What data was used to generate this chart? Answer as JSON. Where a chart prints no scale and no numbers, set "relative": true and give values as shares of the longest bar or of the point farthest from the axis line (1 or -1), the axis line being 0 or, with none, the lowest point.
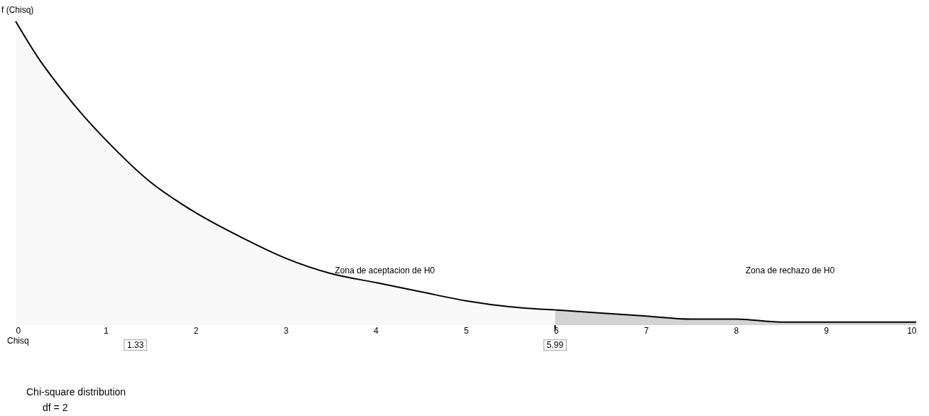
{
  "chart_data": {
    "type": "area",
    "title": "Chi-square distribution",
    "subtitle": "df =  2",
    "xlabel": "Chisq",
    "ylabel": "f (Chisq)",
    "relative": true,
    "xlim": [
      0,
      10
    ],
    "xticks": [
      0,
      1,
      2,
      3,
      4,
      5,
      6,
      7,
      8,
      9,
      10
    ],
    "tick_labels": "x",
    "grid": false,
    "series": [
      {
        "color": "#f7f7f7",
        "x": [
          0,
          0.25,
          0.5,
          0.75,
          1,
          1.5,
          2,
          2.5,
          3,
          3.5,
          4,
          4.5,
          5,
          5.5,
          5.99
        ],
        "values": [
          1,
          0.88,
          0.78,
          0.69,
          0.61,
          0.47,
          0.37,
          0.29,
          0.22,
          0.17,
          0.14,
          0.11,
          0.08,
          0.06,
          0.05
        ]
      },
      {
        "color": "#c0c0c0",
        "x": [
          5.99,
          6.5,
          7,
          7.5,
          8,
          8.5,
          9,
          9.5,
          10
        ],
        "values": [
          0.05,
          0.04,
          0.03,
          0.02,
          0.02,
          0.01,
          0.01,
          0.01,
          0.01
        ]
      }
    ],
    "ref_lines": [
      {
        "axis": "x",
        "value": 5.99,
        "label": "5.99"
      }
    ],
    "annotations": [
      {
        "text": "1.33",
        "x": 1.33,
        "y": 0
      },
      "Zona de aceptacion  de H0",
      "Zona de rechazo de  H0"
    ]
  }
}
